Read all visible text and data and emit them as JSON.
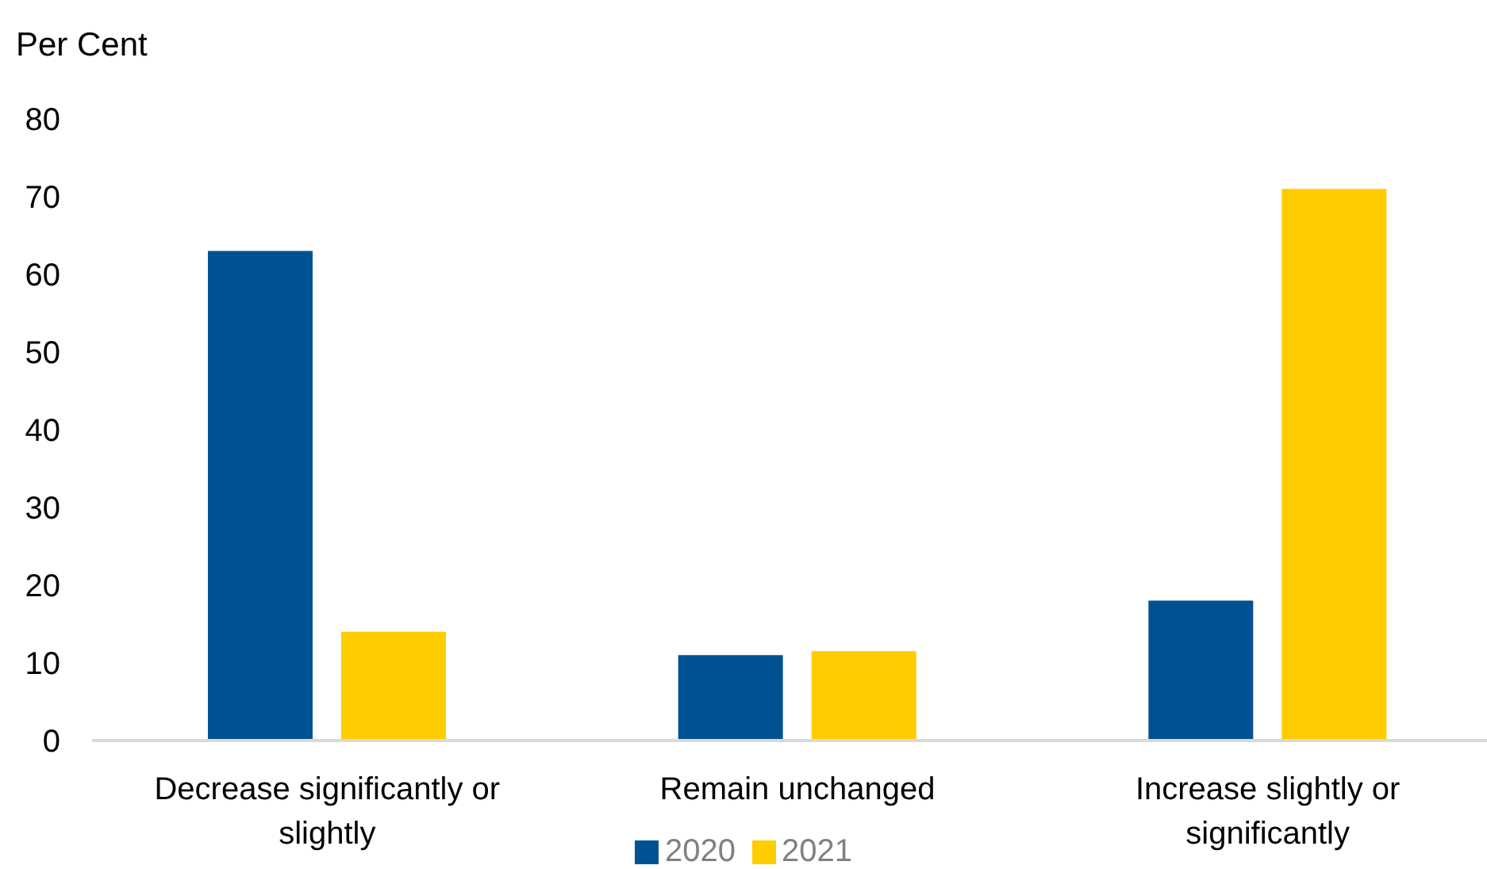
{
  "chart_data": {
    "type": "bar",
    "ylabel": "Per Cent",
    "categories": [
      "Decrease significantly or slightly",
      "Remain unchanged",
      "Increase slightly or significantly"
    ],
    "series": [
      {
        "name": "2020",
        "color": "#005293",
        "values": [
          63,
          11,
          18
        ]
      },
      {
        "name": "2021",
        "color": "#ffcc00",
        "values": [
          14,
          11.5,
          71
        ]
      }
    ],
    "ylim": [
      0,
      80
    ],
    "yticks": [
      0,
      10,
      20,
      30,
      40,
      50,
      60,
      70,
      80
    ],
    "grid": false,
    "legend": "bottom"
  }
}
